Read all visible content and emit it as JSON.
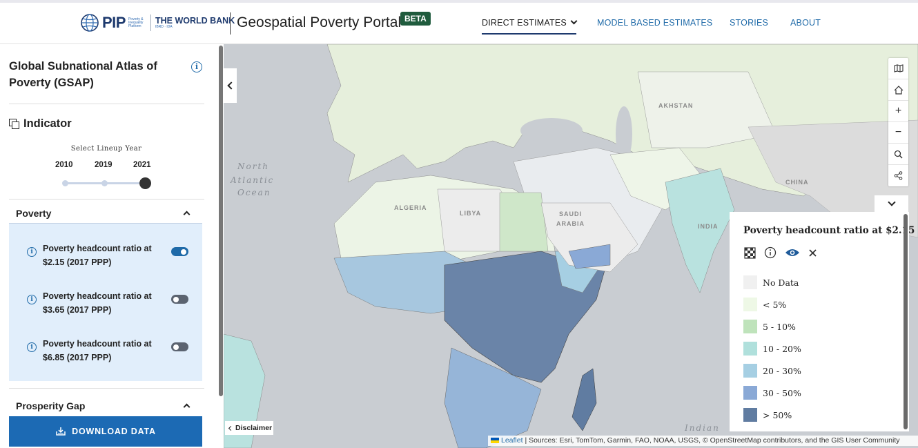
{
  "header": {
    "logo_pip": "PIP",
    "logo_pip_sub": "Poverty & Inequality Platform",
    "logo_wb": "THE WORLD BANK",
    "logo_wb_sub": "IBRD · IDA",
    "title": "Geospatial Poverty Portal",
    "badge": "BETA",
    "nav": [
      {
        "label": "DIRECT ESTIMATES"
      },
      {
        "label": "MODEL BASED ESTIMATES"
      },
      {
        "label": "STORIES"
      },
      {
        "label": "ABOUT"
      }
    ]
  },
  "sidebar": {
    "title": "Global Subnational Atlas of Poverty (GSAP)",
    "indicator_label": "Indicator",
    "lineup_title": "Select Lineup Year",
    "years": [
      "2010",
      "2019",
      "2021"
    ],
    "selected_year": "2021",
    "sections": {
      "poverty": "Poverty",
      "prosperity": "Prosperity Gap"
    },
    "poverty_items": [
      {
        "label": "Poverty headcount ratio at $2.15 (2017 PPP)",
        "enabled": true
      },
      {
        "label": "Poverty headcount ratio at $3.65 (2017 PPP)",
        "enabled": false
      },
      {
        "label": "Poverty headcount ratio at $6.85 (2017 PPP)",
        "enabled": false
      }
    ],
    "download_label": "DOWNLOAD DATA"
  },
  "map": {
    "labels": {
      "north": "North",
      "atlantic": "Atlantic",
      "ocean": "Ocean",
      "indian": "Indian",
      "algeria": "ALGERIA",
      "libya": "LIBYA",
      "saudi1": "SAUDI",
      "saudi2": "ARABIA",
      "india": "INDIA",
      "china": "CHINA",
      "kazakhstan": "AKHSTAN"
    },
    "toolbar": [
      "map-icon",
      "home-icon",
      "zoom-in-icon",
      "zoom-out-icon",
      "search-icon",
      "share-icon"
    ],
    "zoom_in": "+",
    "zoom_out": "−",
    "disclaimer": "Disclaimer",
    "attribution_link": "Leaflet",
    "attribution_text": " | Sources: Esri, TomTom, Garmin, FAO, NOAA, USGS, © OpenStreetMap contributors, and the GIS User Community"
  },
  "legend": {
    "title": "Poverty headcount ratio at $2.15",
    "items": [
      {
        "label": "No Data",
        "color": "#f0f0f0"
      },
      {
        "label": "< 5%",
        "color": "#eef8e6"
      },
      {
        "label": "5 - 10%",
        "color": "#bfe3bb"
      },
      {
        "label": "10 - 20%",
        "color": "#b0e0dc"
      },
      {
        "label": "20 - 30%",
        "color": "#a6cfe3"
      },
      {
        "label": "30 - 50%",
        "color": "#8aa9d6"
      },
      {
        "label": "> 50%",
        "color": "#607ca1"
      }
    ]
  }
}
